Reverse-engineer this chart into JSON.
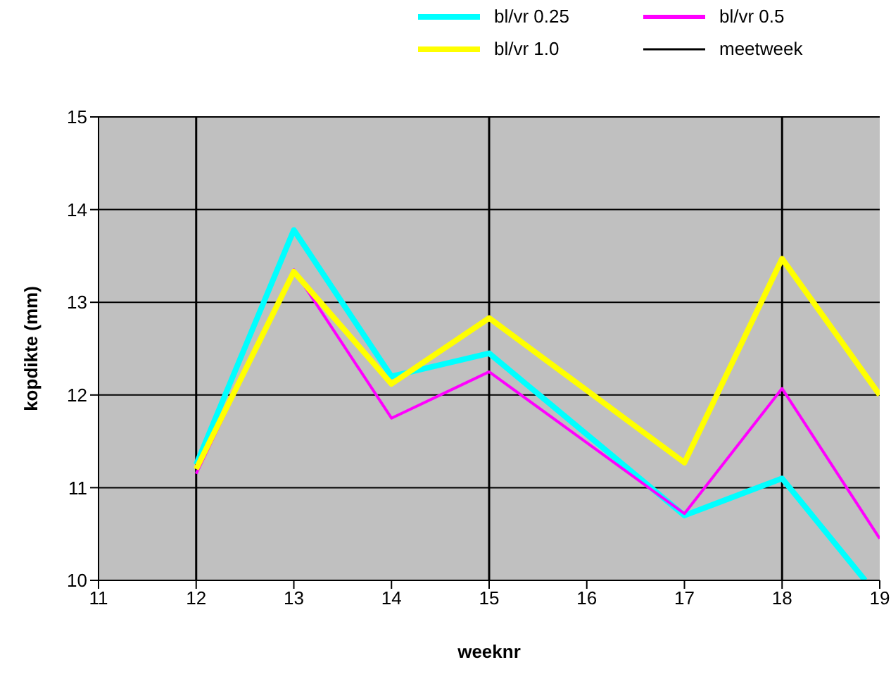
{
  "chart_data": {
    "type": "line",
    "xlabel": "weeknr",
    "ylabel": "kopdikte (mm)",
    "x": [
      12,
      13,
      14,
      15,
      17,
      18,
      19
    ],
    "series": [
      {
        "name": "bl/vr 0.25",
        "color": "#00ffff",
        "x": [
          12,
          13,
          14,
          15,
          17,
          18,
          18.85
        ],
        "values": [
          11.25,
          13.78,
          12.2,
          12.45,
          10.7,
          11.1,
          10
        ]
      },
      {
        "name": "bl/vr 0.5",
        "color": "#ff00ff",
        "values": [
          11.15,
          13.35,
          11.75,
          12.25,
          10.72,
          12.07,
          10.45
        ]
      },
      {
        "name": "bl/vr 1.0",
        "color": "#ffff00",
        "values": [
          11.2,
          13.33,
          12.12,
          12.83,
          11.27,
          13.47,
          12.0
        ]
      }
    ],
    "ref_lines": [
      {
        "axis": "x",
        "value": 12,
        "label": "meetweek",
        "color": "#000000"
      },
      {
        "axis": "x",
        "value": 15,
        "color": "#000000"
      },
      {
        "axis": "x",
        "value": 18,
        "color": "#000000"
      }
    ],
    "xlim": [
      11,
      19
    ],
    "xticks": [
      11,
      12,
      13,
      14,
      15,
      16,
      17,
      18,
      19
    ],
    "ylim": [
      10,
      15
    ],
    "yticks": [
      10,
      11,
      12,
      13,
      14,
      15
    ],
    "grid": "y",
    "legend": "top",
    "marker": "none",
    "line_style": "solid"
  }
}
